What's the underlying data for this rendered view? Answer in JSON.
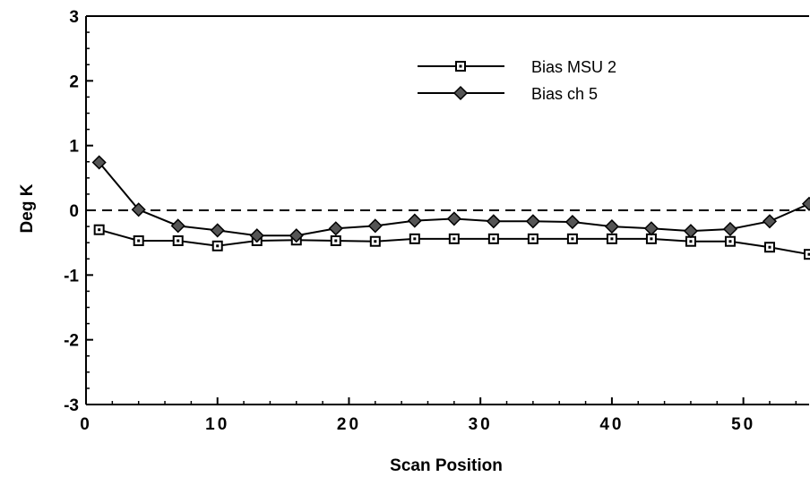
{
  "chart_data": {
    "type": "line",
    "title": "",
    "xlabel": "Scan Position",
    "ylabel": "Deg K",
    "xlim": [
      0,
      55
    ],
    "ylim": [
      -3,
      3
    ],
    "xticks": [
      0,
      10,
      20,
      30,
      40,
      50
    ],
    "yticks": [
      -3,
      -2,
      -1,
      0,
      1,
      2,
      3
    ],
    "reference_line": {
      "y": 0,
      "style": "dashed"
    },
    "legend_position": "top-right",
    "series": [
      {
        "name": "Bias MSU 2",
        "marker": "square",
        "x": [
          1,
          4,
          7,
          10,
          13,
          16,
          19,
          22,
          25,
          28,
          31,
          34,
          37,
          40,
          43,
          46,
          49,
          52,
          55
        ],
        "y": [
          -0.3,
          -0.47,
          -0.47,
          -0.55,
          -0.47,
          -0.46,
          -0.47,
          -0.48,
          -0.44,
          -0.44,
          -0.44,
          -0.44,
          -0.44,
          -0.44,
          -0.44,
          -0.48,
          -0.48,
          -0.57,
          -0.68
        ]
      },
      {
        "name": "Bias ch 5",
        "marker": "diamond",
        "x": [
          1,
          4,
          7,
          10,
          13,
          16,
          19,
          22,
          25,
          28,
          31,
          34,
          37,
          40,
          43,
          46,
          49,
          52,
          55
        ],
        "y": [
          0.74,
          0.01,
          -0.24,
          -0.31,
          -0.39,
          -0.39,
          -0.28,
          -0.24,
          -0.16,
          -0.13,
          -0.17,
          -0.17,
          -0.18,
          -0.25,
          -0.28,
          -0.32,
          -0.29,
          -0.17,
          0.1
        ]
      }
    ]
  }
}
